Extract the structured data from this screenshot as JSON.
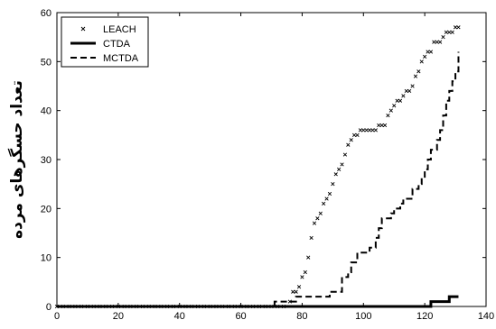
{
  "chart_data": {
    "type": "line",
    "ylabel": "تعداد حسگرهای مرده",
    "xlim": [
      0,
      140
    ],
    "ylim": [
      0,
      60
    ],
    "xticks": [
      0,
      20,
      40,
      60,
      80,
      100,
      120,
      140
    ],
    "yticks": [
      0,
      10,
      20,
      30,
      40,
      50,
      60
    ],
    "grid": false,
    "legend_position": "top-left",
    "series": [
      {
        "name": "LEACH",
        "style": "x-markers",
        "color": "#000000",
        "x": [
          0,
          2,
          4,
          6,
          8,
          10,
          12,
          14,
          16,
          18,
          20,
          22,
          24,
          26,
          28,
          30,
          32,
          34,
          36,
          38,
          40,
          42,
          44,
          46,
          48,
          50,
          52,
          54,
          56,
          58,
          60,
          62,
          64,
          66,
          68,
          70,
          72,
          74,
          76,
          77,
          78,
          79,
          80,
          81,
          82,
          83,
          84,
          85,
          86,
          87,
          88,
          89,
          90,
          91,
          92,
          93,
          94,
          95,
          96,
          97,
          98,
          99,
          100,
          101,
          102,
          103,
          104,
          105,
          106,
          107,
          108,
          109,
          110,
          111,
          112,
          113,
          114,
          115,
          116,
          117,
          118,
          119,
          120,
          121,
          122,
          123,
          124,
          125,
          126,
          127,
          128,
          129,
          130,
          131
        ],
        "y": [
          0,
          0,
          0,
          0,
          0,
          0,
          0,
          0,
          0,
          0,
          0,
          0,
          0,
          0,
          0,
          0,
          0,
          0,
          0,
          0,
          0,
          0,
          0,
          0,
          0,
          0,
          0,
          0,
          0,
          0,
          0,
          0,
          0,
          0,
          0,
          0,
          0,
          0,
          1,
          3,
          3,
          4,
          6,
          7,
          10,
          14,
          17,
          18,
          19,
          21,
          22,
          23,
          25,
          27,
          28,
          29,
          31,
          33,
          34,
          35,
          35,
          36,
          36,
          36,
          36,
          36,
          36,
          37,
          37,
          37,
          39,
          40,
          41,
          42,
          42,
          43,
          44,
          44,
          45,
          47,
          48,
          50,
          51,
          52,
          52,
          54,
          54,
          54,
          55,
          56,
          56,
          56,
          57,
          57
        ]
      },
      {
        "name": "CTDA",
        "style": "thick-solid",
        "color": "#000000",
        "x": [
          0,
          120,
          121,
          122,
          123,
          124,
          125,
          126,
          127,
          128,
          129,
          130,
          131
        ],
        "y": [
          0,
          0,
          0,
          1,
          1,
          1,
          1,
          1,
          1,
          2,
          2,
          2,
          2
        ]
      },
      {
        "name": "MCTDA",
        "style": "dashed",
        "color": "#000000",
        "x": [
          0,
          70,
          71,
          77,
          78,
          80,
          81,
          88,
          89,
          92,
          93,
          95,
          96,
          97,
          98,
          100,
          101,
          102,
          104,
          105,
          106,
          107,
          109,
          110,
          112,
          113,
          114,
          116,
          118,
          119,
          120,
          121,
          122,
          123,
          124,
          125,
          126,
          127,
          128,
          129,
          130,
          131
        ],
        "y": [
          0,
          0,
          1,
          1,
          2,
          2,
          2,
          2,
          3,
          3,
          6,
          7,
          9,
          9,
          11,
          11,
          11,
          12,
          14,
          16,
          18,
          18,
          19,
          20,
          21,
          22,
          22,
          24,
          25,
          26,
          28,
          30,
          32,
          32,
          34,
          36,
          39,
          42,
          44,
          46,
          48,
          52
        ]
      }
    ]
  }
}
